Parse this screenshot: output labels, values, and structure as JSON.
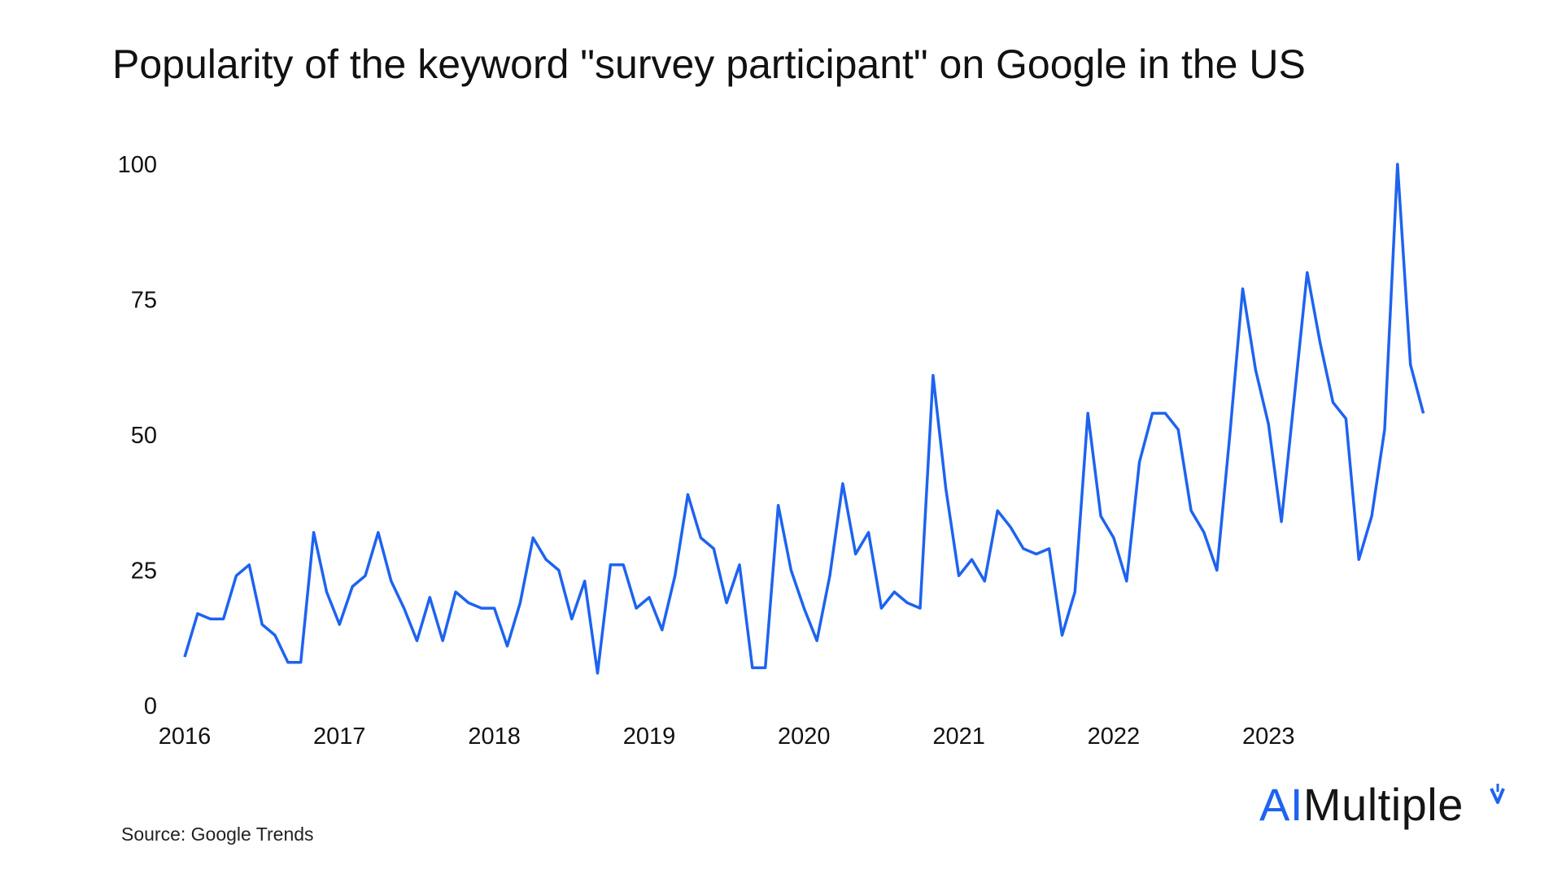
{
  "chart_data": {
    "type": "line",
    "title": "Popularity of the keyword \"survey participant\" on Google in the US",
    "xlabel": "",
    "ylabel": "",
    "x_ticks": [
      "2016",
      "2017",
      "2018",
      "2019",
      "2020",
      "2021",
      "2022",
      "2023"
    ],
    "y_ticks": [
      "0",
      "25",
      "50",
      "75",
      "100"
    ],
    "ylim": [
      0,
      100
    ],
    "x_range": [
      "2016-01",
      "2024-01"
    ],
    "grid": false,
    "legend": "none",
    "line_color": "#1e63f0",
    "x_unit": "month",
    "x_start": "2016-01",
    "values": [
      9,
      17,
      16,
      16,
      24,
      26,
      15,
      13,
      8,
      8,
      32,
      21,
      15,
      22,
      24,
      32,
      23,
      18,
      12,
      20,
      12,
      21,
      19,
      18,
      18,
      11,
      19,
      31,
      27,
      25,
      16,
      23,
      6,
      26,
      26,
      18,
      20,
      14,
      24,
      39,
      31,
      29,
      19,
      26,
      7,
      7,
      37,
      25,
      18,
      12,
      24,
      41,
      28,
      32,
      18,
      21,
      19,
      18,
      61,
      40,
      24,
      27,
      23,
      36,
      33,
      29,
      28,
      29,
      13,
      21,
      54,
      35,
      31,
      23,
      45,
      54,
      54,
      51,
      36,
      32,
      25,
      50,
      77,
      62,
      52,
      34,
      57,
      80,
      67,
      56,
      53,
      27,
      35,
      51,
      100,
      63,
      54
    ]
  },
  "source": "Source: Google Trends",
  "logo": {
    "ai": "AI",
    "rest": "Multiple"
  }
}
